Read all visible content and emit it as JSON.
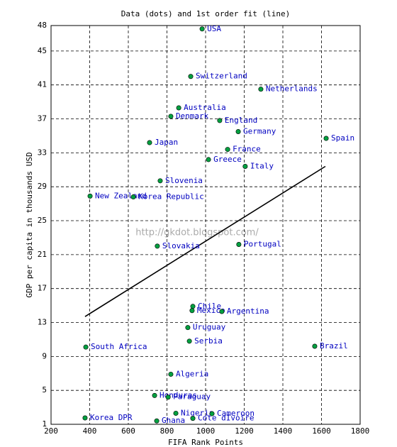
{
  "chart_data": {
    "type": "scatter",
    "title": "Data (dots) and 1st order fit (line)",
    "x_label": "FIFA Rank Points",
    "y_label": "GDP per capita in thousands USD",
    "annotation": "http://gkdot.blogspot.com/",
    "labels": [
      "USA",
      "Switzerland",
      "Netherlands",
      "Australia",
      "Denmark",
      "England",
      "Germany",
      "Spain",
      "Japan",
      "France",
      "Greece",
      "Italy",
      "Slovenia",
      "New Zealand",
      "Korea Republic",
      "Slovakia",
      "Portugal",
      "Chile",
      "Mexico",
      "Argentina",
      "Uruguay",
      "Serbia",
      "South Africa",
      "Brazil",
      "Algeria",
      "Honduras",
      "Paraguay",
      "Nigeria",
      "Cameroon",
      "Korea DPR",
      "Ghana",
      "Cote dIvoire"
    ],
    "x": [
      982,
      923,
      1286,
      861,
      820,
      1073,
      1169,
      1624,
      710,
      1114,
      1015,
      1205,
      765,
      402,
      626,
      750,
      1172,
      934,
      930,
      1084,
      908,
      916,
      380,
      1565,
      820,
      736,
      806,
      846,
      1033,
      376,
      747,
      934
    ],
    "values": [
      47.6,
      42,
      40.5,
      38.3,
      37.3,
      36.8,
      35.5,
      34.7,
      34.2,
      33.4,
      32.2,
      31.4,
      29.7,
      27.9,
      27.8,
      22,
      22.2,
      14.9,
      14.4,
      14.3,
      12.4,
      10.8,
      10.1,
      10.2,
      6.9,
      4.4,
      4.2,
      2.3,
      2.25,
      1.75,
      1.4,
      1.7
    ],
    "color": "#00a040",
    "label_color": "#0000c0",
    "fit": {
      "x": [
        376,
        1620
      ],
      "values": [
        13.7,
        31.4
      ],
      "color": "#000000"
    },
    "xlim": [
      200,
      1800
    ],
    "xticks": [
      200,
      400,
      600,
      800,
      1000,
      1200,
      1400,
      1600,
      1800
    ],
    "ylim": [
      1,
      48
    ],
    "yticks": [
      1,
      5,
      9,
      13,
      17,
      21,
      25,
      29,
      33,
      37,
      41,
      45,
      48
    ],
    "grid": true
  }
}
